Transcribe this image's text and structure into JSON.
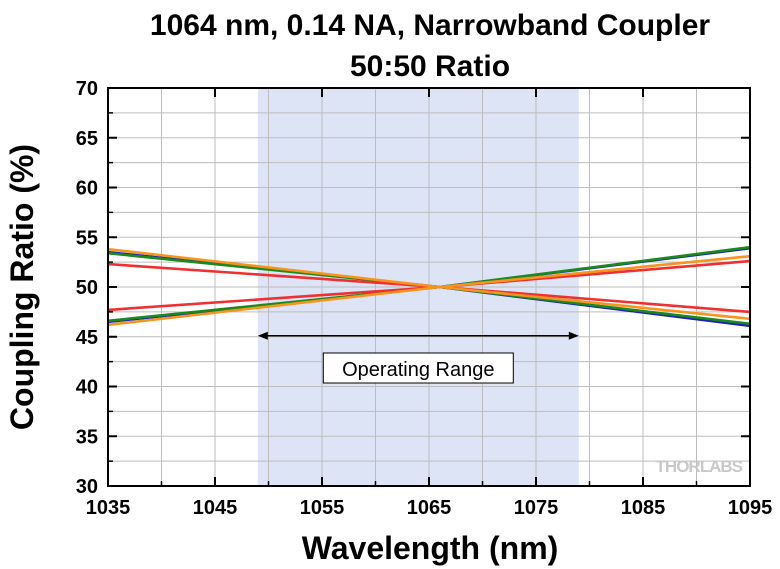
{
  "chart_data": {
    "type": "line",
    "title": "1064 nm, 0.14 NA, Narrowband Coupler",
    "subtitle": "50:50 Ratio",
    "xlabel": "Wavelength (nm)",
    "ylabel": "Coupling Ratio (%)",
    "xlim": [
      1035,
      1095
    ],
    "ylim": [
      30,
      70
    ],
    "x_ticks": [
      1035,
      1045,
      1055,
      1065,
      1075,
      1085,
      1095
    ],
    "y_ticks": [
      30,
      35,
      40,
      45,
      50,
      55,
      60,
      65,
      70
    ],
    "grid": true,
    "shaded_region": {
      "x_range": [
        1049,
        1079
      ],
      "color": "#dce4f5"
    },
    "annotation": {
      "text": "Operating Range",
      "x_range": [
        1049,
        1079
      ],
      "y": 45
    },
    "series": [
      {
        "color": "#1c1cc8",
        "x": [
          1035,
          1066,
          1095
        ],
        "y": [
          53.5,
          50.0,
          46.1
        ]
      },
      {
        "color": "#1c1cc8",
        "x": [
          1035,
          1066,
          1095
        ],
        "y": [
          46.5,
          50.0,
          53.9
        ]
      },
      {
        "color": "#1a8a1a",
        "x": [
          1035,
          1066,
          1095
        ],
        "y": [
          53.4,
          50.0,
          46.3
        ]
      },
      {
        "color": "#1a8a1a",
        "x": [
          1035,
          1066,
          1095
        ],
        "y": [
          46.6,
          50.0,
          54.0
        ]
      },
      {
        "color": "#f03030",
        "x": [
          1035,
          1066,
          1095
        ],
        "y": [
          52.3,
          50.0,
          47.5
        ]
      },
      {
        "color": "#f03030",
        "x": [
          1035,
          1066,
          1095
        ],
        "y": [
          47.7,
          50.0,
          52.6
        ]
      },
      {
        "color": "#f7941d",
        "x": [
          1035,
          1066,
          1095
        ],
        "y": [
          53.8,
          50.0,
          46.8
        ]
      },
      {
        "color": "#f7941d",
        "x": [
          1035,
          1066,
          1095
        ],
        "y": [
          46.2,
          50.0,
          53.1
        ]
      }
    ],
    "watermark": "THORLABS"
  }
}
